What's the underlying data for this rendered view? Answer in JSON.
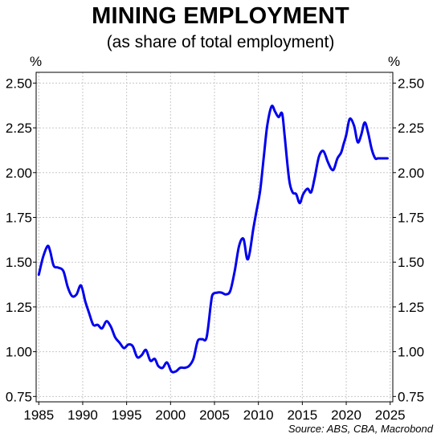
{
  "title": "MINING EMPLOYMENT",
  "subtitle": "(as share of total employment)",
  "chart_data": {
    "type": "line",
    "title": "MINING EMPLOYMENT",
    "subtitle": "(as share of total employment)",
    "y_unit_left": "%",
    "y_unit_right": "%",
    "source": "Source: ABS, CBA, Macrobond",
    "xlim": [
      1984.7,
      2025.3
    ],
    "ylim": [
      0.72,
      2.56
    ],
    "xticks": [
      "1985",
      "1990",
      "1995",
      "2000",
      "2005",
      "2010",
      "2015",
      "2020",
      "2025"
    ],
    "yticks": [
      "0.75",
      "1.00",
      "1.25",
      "1.50",
      "1.75",
      "2.00",
      "2.25",
      "2.50"
    ],
    "grid": true,
    "line_color": "#0000ee",
    "series": [
      {
        "x": [
          1985.0,
          1985.5,
          1986.0,
          1986.3,
          1986.7,
          1987.2,
          1987.8,
          1988.3,
          1988.8,
          1989.3,
          1989.8,
          1990.3,
          1990.7,
          1991.2,
          1991.7,
          1992.2,
          1992.7,
          1993.2,
          1993.7,
          1994.2,
          1994.7,
          1995.2,
          1995.7,
          1996.2,
          1996.7,
          1997.2,
          1997.7,
          1998.2,
          1998.6,
          1999.1,
          1999.6,
          2000.1,
          2000.6,
          2001.1,
          2001.6,
          2002.1,
          2002.6,
          2003.1,
          2003.6,
          2004.1,
          2004.6,
          2004.8,
          2005.3,
          2005.8,
          2006.3,
          2006.8,
          2007.3,
          2007.8,
          2008.3,
          2008.7,
          2009.0,
          2009.4,
          2009.8,
          2010.2,
          2010.6,
          2011.0,
          2011.5,
          2011.9,
          2012.3,
          2012.7,
          2013.0,
          2013.5,
          2013.9,
          2014.3,
          2014.7,
          2015.1,
          2015.6,
          2016.0,
          2016.4,
          2016.9,
          2017.4,
          2017.9,
          2018.3,
          2018.6,
          2019.0,
          2019.4,
          2019.7,
          2020.0,
          2020.4,
          2020.9,
          2021.3,
          2021.7,
          2022.1,
          2022.5,
          2022.9,
          2023.3,
          2023.6,
          2024.0,
          2024.4,
          2024.7
        ],
        "y": [
          1.43,
          1.53,
          1.59,
          1.56,
          1.48,
          1.47,
          1.45,
          1.36,
          1.31,
          1.32,
          1.37,
          1.28,
          1.22,
          1.15,
          1.15,
          1.13,
          1.17,
          1.14,
          1.08,
          1.05,
          1.02,
          1.04,
          1.03,
          0.97,
          0.98,
          1.01,
          0.95,
          0.96,
          0.92,
          0.91,
          0.94,
          0.89,
          0.89,
          0.91,
          0.91,
          0.92,
          0.96,
          1.06,
          1.07,
          1.08,
          1.27,
          1.32,
          1.33,
          1.33,
          1.32,
          1.34,
          1.45,
          1.59,
          1.63,
          1.52,
          1.55,
          1.68,
          1.79,
          1.9,
          2.08,
          2.26,
          2.37,
          2.34,
          2.31,
          2.33,
          2.2,
          1.96,
          1.89,
          1.88,
          1.83,
          1.88,
          1.91,
          1.89,
          1.97,
          2.09,
          2.12,
          2.06,
          2.02,
          2.02,
          2.08,
          2.11,
          2.16,
          2.21,
          2.3,
          2.26,
          2.17,
          2.21,
          2.28,
          2.22,
          2.13,
          2.08,
          2.08,
          2.08,
          2.08,
          2.08
        ]
      }
    ]
  }
}
